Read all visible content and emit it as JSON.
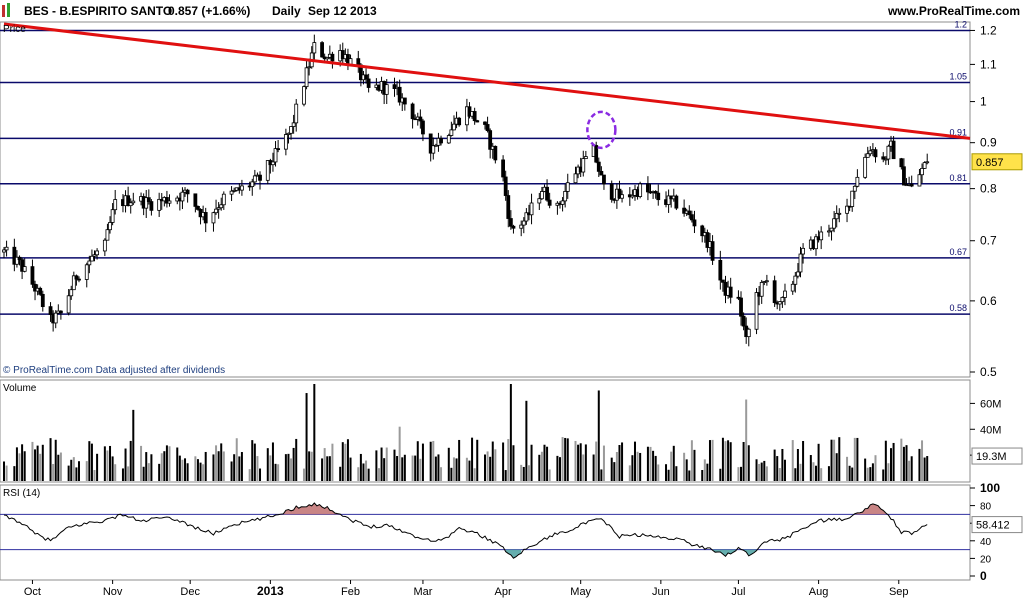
{
  "header": {
    "ticker": "BES - B.ESPIRITO SANTO",
    "quote": "0.857 (+1.66%)",
    "period": "Daily",
    "date": "Sep 12 2013",
    "site": "www.ProRealTime.com"
  },
  "footer_note": "© ProRealTime.com  Data adjusted after dividends",
  "colors": {
    "trendline": "#e01010",
    "fib_lines": "#0a0a6a",
    "rsi_bands": "#3030a0",
    "rsi_over_fill": "#c07070",
    "rsi_under_fill": "#4aa0a0",
    "price_tag": "#ffe24a",
    "circle": "#8a2be2"
  },
  "chart_data": [
    {
      "type": "candlestick",
      "panel_label": "Price",
      "ylim": [
        0.5,
        1.22
      ],
      "y_scale": "log",
      "y_ticks": [
        0.5,
        0.6,
        0.7,
        0.8,
        0.9,
        1,
        1.1,
        1.2
      ],
      "y_tick_labels": [
        "0.5",
        "0.6",
        "0.7",
        "0.8",
        "0.9",
        "1",
        "1.1",
        "1.2"
      ],
      "horizontal_levels": [
        {
          "value": 1.2,
          "label": "1.2"
        },
        {
          "value": 1.05,
          "label": "1.05"
        },
        {
          "value": 0.91,
          "label": "0.91"
        },
        {
          "value": 0.81,
          "label": "0.81"
        },
        {
          "value": 0.67,
          "label": "0.67"
        },
        {
          "value": 0.58,
          "label": "0.58"
        }
      ],
      "last_price": {
        "value": 0.857,
        "label": "0.857"
      },
      "trendline": {
        "from": {
          "date": "2012-09-20",
          "value": 1.22
        },
        "to": {
          "date": "2013-09-27",
          "value": 0.91
        }
      },
      "annotation_circle": {
        "date": "2013-05-09",
        "value": 0.93
      },
      "x_ticks": [
        {
          "date": "2012-10-01",
          "label": "Oct"
        },
        {
          "date": "2012-11-01",
          "label": "Nov"
        },
        {
          "date": "2012-12-01",
          "label": "Dec"
        },
        {
          "date": "2013-01-01",
          "label": "2013"
        },
        {
          "date": "2013-02-01",
          "label": "Feb"
        },
        {
          "date": "2013-03-01",
          "label": "Mar"
        },
        {
          "date": "2013-04-01",
          "label": "Apr"
        },
        {
          "date": "2013-05-01",
          "label": "May"
        },
        {
          "date": "2013-06-01",
          "label": "Jun"
        },
        {
          "date": "2013-07-01",
          "label": "Jul"
        },
        {
          "date": "2013-08-01",
          "label": "Aug"
        },
        {
          "date": "2013-09-01",
          "label": "Sep"
        }
      ],
      "series": [
        {
          "date": "2012-09-20",
          "value": 0.68
        },
        {
          "date": "2012-09-26",
          "value": 0.66
        },
        {
          "date": "2012-10-02",
          "value": 0.62
        },
        {
          "date": "2012-10-08",
          "value": 0.57
        },
        {
          "date": "2012-10-12",
          "value": 0.58
        },
        {
          "date": "2012-10-18",
          "value": 0.64
        },
        {
          "date": "2012-10-24",
          "value": 0.67
        },
        {
          "date": "2012-10-29",
          "value": 0.69
        },
        {
          "date": "2012-11-02",
          "value": 0.77
        },
        {
          "date": "2012-11-09",
          "value": 0.78
        },
        {
          "date": "2012-11-16",
          "value": 0.77
        },
        {
          "date": "2012-11-23",
          "value": 0.78
        },
        {
          "date": "2012-11-30",
          "value": 0.79
        },
        {
          "date": "2012-12-07",
          "value": 0.74
        },
        {
          "date": "2012-12-14",
          "value": 0.78
        },
        {
          "date": "2012-12-21",
          "value": 0.8
        },
        {
          "date": "2012-12-28",
          "value": 0.82
        },
        {
          "date": "2013-01-04",
          "value": 0.88
        },
        {
          "date": "2013-01-09",
          "value": 0.93
        },
        {
          "date": "2013-01-14",
          "value": 1.05
        },
        {
          "date": "2013-01-18",
          "value": 1.15
        },
        {
          "date": "2013-01-23",
          "value": 1.12
        },
        {
          "date": "2013-01-28",
          "value": 1.14
        },
        {
          "date": "2013-02-04",
          "value": 1.08
        },
        {
          "date": "2013-02-08",
          "value": 1.03
        },
        {
          "date": "2013-02-13",
          "value": 1.04
        },
        {
          "date": "2013-02-19",
          "value": 1.02
        },
        {
          "date": "2013-02-25",
          "value": 0.97
        },
        {
          "date": "2013-03-04",
          "value": 0.89
        },
        {
          "date": "2013-03-11",
          "value": 0.93
        },
        {
          "date": "2013-03-18",
          "value": 0.98
        },
        {
          "date": "2013-03-25",
          "value": 0.93
        },
        {
          "date": "2013-04-01",
          "value": 0.82
        },
        {
          "date": "2013-04-04",
          "value": 0.72
        },
        {
          "date": "2013-04-10",
          "value": 0.74
        },
        {
          "date": "2013-04-16",
          "value": 0.8
        },
        {
          "date": "2013-04-22",
          "value": 0.76
        },
        {
          "date": "2013-04-28",
          "value": 0.83
        },
        {
          "date": "2013-05-06",
          "value": 0.88
        },
        {
          "date": "2013-05-10",
          "value": 0.8
        },
        {
          "date": "2013-05-17",
          "value": 0.78
        },
        {
          "date": "2013-05-24",
          "value": 0.8
        },
        {
          "date": "2013-05-31",
          "value": 0.78
        },
        {
          "date": "2013-06-07",
          "value": 0.77
        },
        {
          "date": "2013-06-13",
          "value": 0.74
        },
        {
          "date": "2013-06-19",
          "value": 0.7
        },
        {
          "date": "2013-06-25",
          "value": 0.62
        },
        {
          "date": "2013-07-01",
          "value": 0.6
        },
        {
          "date": "2013-07-04",
          "value": 0.54
        },
        {
          "date": "2013-07-08",
          "value": 0.61
        },
        {
          "date": "2013-07-12",
          "value": 0.63
        },
        {
          "date": "2013-07-17",
          "value": 0.59
        },
        {
          "date": "2013-07-22",
          "value": 0.63
        },
        {
          "date": "2013-07-26",
          "value": 0.68
        },
        {
          "date": "2013-07-31",
          "value": 0.7
        },
        {
          "date": "2013-08-06",
          "value": 0.73
        },
        {
          "date": "2013-08-12",
          "value": 0.76
        },
        {
          "date": "2013-08-16",
          "value": 0.83
        },
        {
          "date": "2013-08-21",
          "value": 0.89
        },
        {
          "date": "2013-08-26",
          "value": 0.86
        },
        {
          "date": "2013-08-29",
          "value": 0.89
        },
        {
          "date": "2013-09-03",
          "value": 0.82
        },
        {
          "date": "2013-09-06",
          "value": 0.8
        },
        {
          "date": "2013-09-10",
          "value": 0.84
        },
        {
          "date": "2013-09-12",
          "value": 0.857
        }
      ]
    },
    {
      "type": "bar",
      "panel_label": "Volume",
      "y_ticks": [
        {
          "value": 20000000,
          "label": "20M"
        },
        {
          "value": 40000000,
          "label": "40M"
        },
        {
          "value": 60000000,
          "label": "60M"
        }
      ],
      "ylim": [
        0,
        75000000
      ],
      "last_value": {
        "value": 19300000,
        "label": "19.3M"
      },
      "spikes": [
        {
          "date": "2012-11-09",
          "value": 55000000
        },
        {
          "date": "2013-01-15",
          "value": 68000000
        },
        {
          "date": "2013-01-18",
          "value": 75000000
        },
        {
          "date": "2013-02-20",
          "value": 42000000
        },
        {
          "date": "2013-04-04",
          "value": 75000000
        },
        {
          "date": "2013-04-10",
          "value": 62000000
        },
        {
          "date": "2013-05-08",
          "value": 70000000
        },
        {
          "date": "2013-07-04",
          "value": 63000000
        }
      ]
    },
    {
      "type": "line",
      "panel_label": "RSI (14)",
      "ylim": [
        0,
        100
      ],
      "y_ticks": [
        0,
        20,
        40,
        60,
        80,
        100
      ],
      "levels": [
        70,
        30
      ],
      "last_value": {
        "value": 58.412,
        "label": "58.412"
      },
      "series": [
        {
          "date": "2012-09-20",
          "value": 68
        },
        {
          "date": "2012-09-26",
          "value": 62
        },
        {
          "date": "2012-10-02",
          "value": 48
        },
        {
          "date": "2012-10-08",
          "value": 40
        },
        {
          "date": "2012-10-15",
          "value": 55
        },
        {
          "date": "2012-10-22",
          "value": 60
        },
        {
          "date": "2012-10-29",
          "value": 63
        },
        {
          "date": "2012-11-05",
          "value": 70
        },
        {
          "date": "2012-11-12",
          "value": 62
        },
        {
          "date": "2012-11-19",
          "value": 66
        },
        {
          "date": "2012-11-26",
          "value": 64
        },
        {
          "date": "2012-12-03",
          "value": 55
        },
        {
          "date": "2012-12-10",
          "value": 48
        },
        {
          "date": "2012-12-17",
          "value": 58
        },
        {
          "date": "2012-12-27",
          "value": 64
        },
        {
          "date": "2013-01-04",
          "value": 70
        },
        {
          "date": "2013-01-11",
          "value": 78
        },
        {
          "date": "2013-01-18",
          "value": 82
        },
        {
          "date": "2013-01-25",
          "value": 75
        },
        {
          "date": "2013-02-01",
          "value": 64
        },
        {
          "date": "2013-02-08",
          "value": 56
        },
        {
          "date": "2013-02-15",
          "value": 58
        },
        {
          "date": "2013-02-22",
          "value": 50
        },
        {
          "date": "2013-03-01",
          "value": 42
        },
        {
          "date": "2013-03-08",
          "value": 40
        },
        {
          "date": "2013-03-15",
          "value": 54
        },
        {
          "date": "2013-03-22",
          "value": 48
        },
        {
          "date": "2013-03-29",
          "value": 38
        },
        {
          "date": "2013-04-05",
          "value": 22
        },
        {
          "date": "2013-04-12",
          "value": 34
        },
        {
          "date": "2013-04-19",
          "value": 45
        },
        {
          "date": "2013-04-26",
          "value": 52
        },
        {
          "date": "2013-05-03",
          "value": 60
        },
        {
          "date": "2013-05-09",
          "value": 65
        },
        {
          "date": "2013-05-16",
          "value": 45
        },
        {
          "date": "2013-05-23",
          "value": 47
        },
        {
          "date": "2013-05-31",
          "value": 44
        },
        {
          "date": "2013-06-07",
          "value": 43
        },
        {
          "date": "2013-06-14",
          "value": 35
        },
        {
          "date": "2013-06-21",
          "value": 30
        },
        {
          "date": "2013-06-26",
          "value": 24
        },
        {
          "date": "2013-07-02",
          "value": 32
        },
        {
          "date": "2013-07-05",
          "value": 22
        },
        {
          "date": "2013-07-12",
          "value": 40
        },
        {
          "date": "2013-07-19",
          "value": 42
        },
        {
          "date": "2013-07-26",
          "value": 55
        },
        {
          "date": "2013-08-02",
          "value": 63
        },
        {
          "date": "2013-08-09",
          "value": 64
        },
        {
          "date": "2013-08-16",
          "value": 70
        },
        {
          "date": "2013-08-22",
          "value": 82
        },
        {
          "date": "2013-08-28",
          "value": 70
        },
        {
          "date": "2013-09-02",
          "value": 50
        },
        {
          "date": "2013-09-06",
          "value": 48
        },
        {
          "date": "2013-09-12",
          "value": 58.412
        }
      ]
    }
  ]
}
